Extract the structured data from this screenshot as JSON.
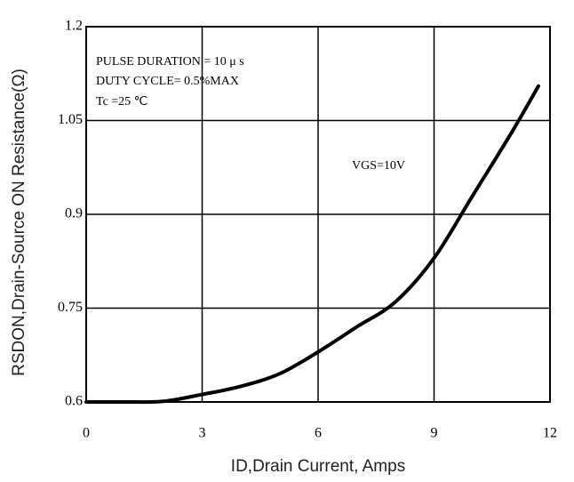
{
  "chart_data": {
    "type": "line",
    "xlabel": "ID,Drain Current, Amps",
    "ylabel": "RSDON,Drain-Source ON Resistance(Ω)",
    "annotations": [
      "PULSE   DURATION = 10 μ s",
      "DUTY   CYCLE= 0.5%MAX",
      "Tc =25  ℃",
      "VGS=10V"
    ],
    "x": [
      0,
      1,
      2,
      3,
      4,
      5,
      6,
      7,
      8,
      9,
      10,
      11,
      11.7
    ],
    "values": [
      0.6,
      0.6,
      0.601,
      0.612,
      0.625,
      0.645,
      0.68,
      0.72,
      0.76,
      0.83,
      0.93,
      1.03,
      1.105
    ],
    "color": "#000000",
    "xlim": [
      0,
      12
    ],
    "xticks": [
      0,
      3,
      6,
      9,
      12
    ],
    "ylim": [
      0.6,
      1.2
    ],
    "yticks": [
      0.6,
      0.75,
      0.9,
      1.05,
      1.2
    ],
    "grid": true
  }
}
